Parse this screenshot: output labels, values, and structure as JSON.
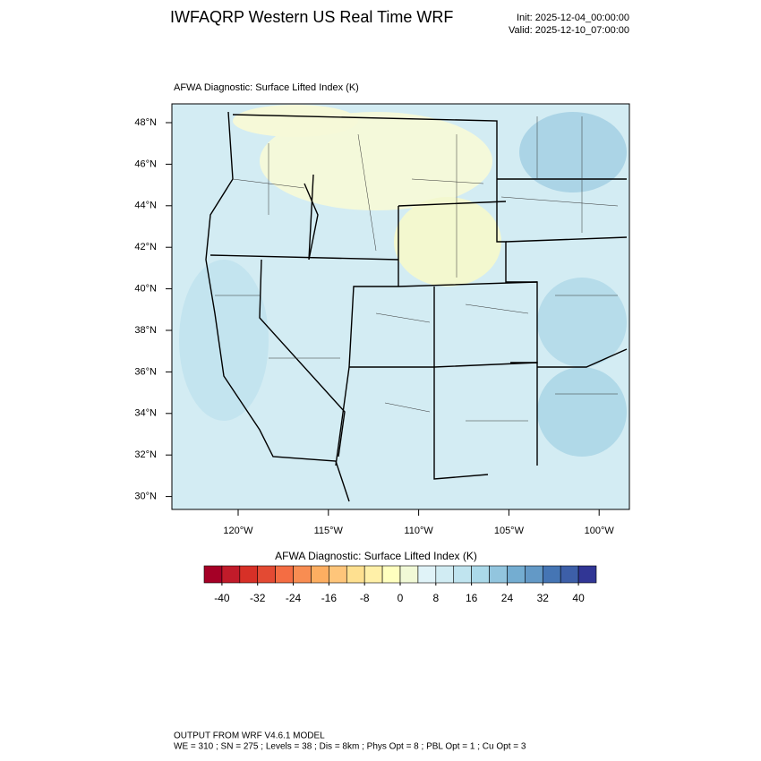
{
  "header": {
    "title": "IWFAQRP Western US Real Time WRF",
    "init": "Init: 2025-12-04_00:00:00",
    "valid": "Valid: 2025-12-10_07:00:00"
  },
  "map": {
    "title": "AFWA Diagnostic: Surface Lifted Index   (K)",
    "lat_labels": [
      "48°N",
      "46°N",
      "44°N",
      "42°N",
      "40°N",
      "38°N",
      "36°N",
      "34°N",
      "32°N",
      "30°N"
    ],
    "lon_labels": [
      "120°W",
      "115°W",
      "110°W",
      "105°W",
      "100°W"
    ]
  },
  "colorbar": {
    "title": "AFWA Diagnostic: Surface Lifted Index  (K)",
    "lim": [
      -44,
      44
    ],
    "ticks": [
      -40,
      -32,
      -24,
      -16,
      -8,
      0,
      8,
      16,
      24,
      32,
      40
    ],
    "colors": [
      "#a50026",
      "#c11b2a",
      "#d73027",
      "#e34a33",
      "#f46d43",
      "#f88d52",
      "#fdae61",
      "#fec57a",
      "#fee090",
      "#fff0a8",
      "#ffffbf",
      "#f1f9d6",
      "#e0f3f8",
      "#d1ecf3",
      "#c0e4ef",
      "#abd9e9",
      "#92c5de",
      "#74add1",
      "#6399c6",
      "#4575b4",
      "#3d5fa8",
      "#313695"
    ]
  },
  "footer": {
    "line1": "OUTPUT FROM WRF V4.6.1 MODEL",
    "line2": "WE = 310 ; SN = 275 ; Levels = 38 ; Dis = 8km ; Phys Opt = 8 ; PBL Opt = 1 ; Cu Opt = 3"
  }
}
